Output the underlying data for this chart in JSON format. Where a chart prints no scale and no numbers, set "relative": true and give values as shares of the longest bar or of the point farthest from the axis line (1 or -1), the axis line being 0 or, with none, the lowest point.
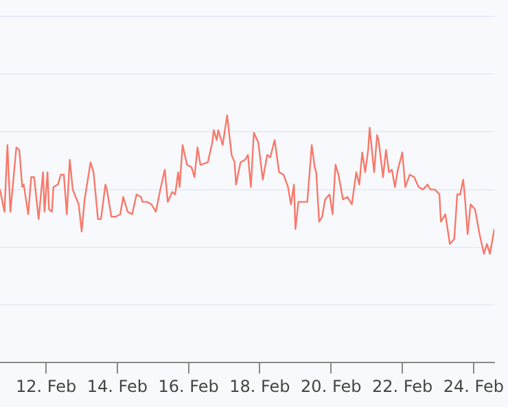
{
  "chart_data": {
    "type": "line",
    "relative": true,
    "grid": "y",
    "legend": false,
    "marker": "none",
    "line_style": "solid",
    "xlim": [
      "--02-10T17:00",
      "--02-24T14:00"
    ],
    "xticks": [
      {
        "value": "--02-12",
        "label": "12. Feb"
      },
      {
        "value": "--02-14",
        "label": "14. Feb"
      },
      {
        "value": "--02-16",
        "label": "16. Feb"
      },
      {
        "value": "--02-18",
        "label": "18. Feb"
      },
      {
        "value": "--02-20",
        "label": "20. Feb"
      },
      {
        "value": "--02-22",
        "label": "22. Feb"
      },
      {
        "value": "--02-24",
        "label": "24. Feb"
      }
    ],
    "x": [
      "--02-10T17:00",
      "--02-10T20:00",
      "--02-10T22:00",
      "--02-11T00:00",
      "--02-11T04:00",
      "--02-11T06:00",
      "--02-11T08:00",
      "--02-11T09:00",
      "--02-11T12:00",
      "--02-11T14:00",
      "--02-11T16:00",
      "--02-11T19:00",
      "--02-11T22:00",
      "--02-11T23:00",
      "--02-12T01:00",
      "--02-12T02:00",
      "--02-12T04:00",
      "--02-12T05:00",
      "--02-12T08:00",
      "--02-12T10:00",
      "--02-12T12:00",
      "--02-12T14:00",
      "--02-12T16:00",
      "--02-12T18:00",
      "--02-12T22:00",
      "--02-13T00:00",
      "--02-13T02:00",
      "--02-13T06:00",
      "--02-13T08:00",
      "--02-13T11:00",
      "--02-13T13:00",
      "--02-13T16:00",
      "--02-13T17:00",
      "--02-13T20:00",
      "--02-13T23:00",
      "--02-14T02:00",
      "--02-14T04:00",
      "--02-14T07:00",
      "--02-14T10:00",
      "--02-14T13:00",
      "--02-14T16:00",
      "--02-14T17:00",
      "--02-14T20:00",
      "--02-14T23:00",
      "--02-15T02:00",
      "--02-15T05:00",
      "--02-15T08:00",
      "--02-15T10:00",
      "--02-15T13:00",
      "--02-15T15:00",
      "--02-15T17:00",
      "--02-15T18:00",
      "--02-15T20:00",
      "--02-15T23:00",
      "--02-16T02:00",
      "--02-16T04:00",
      "--02-16T06:00",
      "--02-16T08:00",
      "--02-16T13:00",
      "--02-16T16:00",
      "--02-16T17:00",
      "--02-16T19:00",
      "--02-16T20:00",
      "--02-16T23:00",
      "--02-17T02:00",
      "--02-17T05:00",
      "--02-17T07:00",
      "--02-17T08:00",
      "--02-17T11:00",
      "--02-17T14:00",
      "--02-17T16:00",
      "--02-17T18:00",
      "--02-17T20:00",
      "--02-17T23:00",
      "--02-18T02:00",
      "--02-18T05:00",
      "--02-18T07:00",
      "--02-18T10:00",
      "--02-18T13:00",
      "--02-18T16:00",
      "--02-18T19:00",
      "--02-18T21:00",
      "--02-18T23:00",
      "--02-19T00:00",
      "--02-19T02:00",
      "--02-19T08:00",
      "--02-19T11:00",
      "--02-19T13:00",
      "--02-19T14:00",
      "--02-19T16:00",
      "--02-19T18:00",
      "--02-19T20:00",
      "--02-19T23:00",
      "--02-20T01:00",
      "--02-20T03:00",
      "--02-20T05:00",
      "--02-20T08:00",
      "--02-20T11:00",
      "--02-20T14:00",
      "--02-20T17:00",
      "--02-20T19:00",
      "--02-20T21:00",
      "--02-20T23:00",
      "--02-21T01:00",
      "--02-21T02:00",
      "--02-21T05:00",
      "--02-21T07:00",
      "--02-21T08:00",
      "--02-21T11:00",
      "--02-21T13:00",
      "--02-21T15:00",
      "--02-21T17:00",
      "--02-21T19:00",
      "--02-21T21:00",
      "--02-22T00:00",
      "--02-22T02:00",
      "--02-22T05:00",
      "--02-22T08:00",
      "--02-22T11:00",
      "--02-22T14:00",
      "--02-22T17:00",
      "--02-22T19:00",
      "--02-22T22:00",
      "--02-23T01:00",
      "--02-23T02:00",
      "--02-23T05:00",
      "--02-23T08:00",
      "--02-23T11:00",
      "--02-23T13:00",
      "--02-23T15:00",
      "--02-23T17:00",
      "--02-23T18:00",
      "--02-23T20:00",
      "--02-23T22:00",
      "--02-24T01:00",
      "--02-24T04:00",
      "--02-24T07:00",
      "--02-24T09:00",
      "--02-24T11:00",
      "--02-24T14:00"
    ],
    "series": [
      {
        "color": "#f7796b",
        "values": [
          0.7,
          0.61,
          0.88,
          0.61,
          0.87,
          0.86,
          0.71,
          0.72,
          0.6,
          0.75,
          0.75,
          0.58,
          0.77,
          0.61,
          0.77,
          0.62,
          0.61,
          0.71,
          0.72,
          0.76,
          0.76,
          0.6,
          0.82,
          0.7,
          0.64,
          0.53,
          0.66,
          0.81,
          0.77,
          0.58,
          0.58,
          0.72,
          0.7,
          0.59,
          0.59,
          0.6,
          0.67,
          0.61,
          0.6,
          0.68,
          0.67,
          0.65,
          0.65,
          0.64,
          0.61,
          0.7,
          0.78,
          0.65,
          0.69,
          0.68,
          0.77,
          0.71,
          0.88,
          0.8,
          0.79,
          0.75,
          0.87,
          0.8,
          0.81,
          0.89,
          0.94,
          0.9,
          0.94,
          0.88,
          1.0,
          0.84,
          0.81,
          0.72,
          0.81,
          0.82,
          0.84,
          0.71,
          0.93,
          0.89,
          0.74,
          0.84,
          0.83,
          0.9,
          0.77,
          0.76,
          0.71,
          0.64,
          0.72,
          0.54,
          0.65,
          0.65,
          0.88,
          0.79,
          0.77,
          0.57,
          0.59,
          0.66,
          0.68,
          0.6,
          0.8,
          0.76,
          0.66,
          0.67,
          0.64,
          0.77,
          0.72,
          0.85,
          0.77,
          0.86,
          0.95,
          0.77,
          0.92,
          0.9,
          0.75,
          0.86,
          0.77,
          0.78,
          0.71,
          0.78,
          0.85,
          0.71,
          0.76,
          0.75,
          0.71,
          0.7,
          0.72,
          0.7,
          0.7,
          0.68,
          0.57,
          0.6,
          0.48,
          0.5,
          0.68,
          0.68,
          0.74,
          0.68,
          0.52,
          0.64,
          0.62,
          0.52,
          0.44,
          0.48,
          0.44,
          0.54
        ]
      }
    ]
  }
}
